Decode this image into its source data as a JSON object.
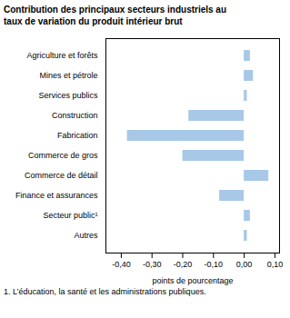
{
  "chart_data": {
    "type": "bar",
    "orientation": "horizontal",
    "title": "Contribution des principaux secteurs industriels au\ntaux de variation du produit intérieur brut",
    "xlabel": "points de pourcentage",
    "footnote": "1. L’éducation, la santé et les administrations publiques.",
    "categories": [
      "Agriculture et forêts",
      "Mines et pétrole",
      "Services publics",
      "Construction",
      "Fabrication",
      "Commerce de gros",
      "Commerce de détail",
      "Finance et assurances",
      "Secteur public¹",
      "Autres"
    ],
    "values": [
      0.02,
      0.03,
      0.01,
      -0.18,
      -0.38,
      -0.2,
      0.08,
      -0.08,
      0.02,
      0.01
    ],
    "color": "#a8c8e8",
    "xlim": [
      -0.45,
      0.115
    ],
    "xticks": [
      {
        "value": -0.4,
        "label": "-0,40"
      },
      {
        "value": -0.3,
        "label": "-0,30"
      },
      {
        "value": -0.2,
        "label": "-0,20"
      },
      {
        "value": -0.1,
        "label": "-0,10"
      },
      {
        "value": 0.0,
        "label": "0,00"
      },
      {
        "value": 0.1,
        "label": "0,10"
      }
    ],
    "grid": false
  }
}
